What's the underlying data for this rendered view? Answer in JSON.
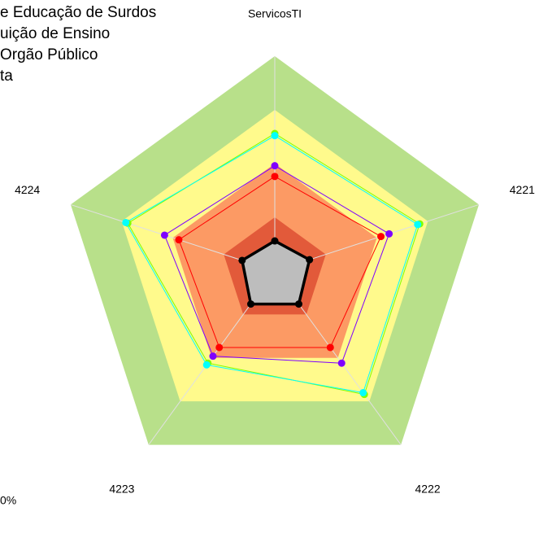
{
  "chart_data": {
    "type": "radar",
    "categories": [
      "ServicosTI",
      "4221",
      "4222",
      "4223",
      "4224"
    ],
    "rlim": [
      0,
      100
    ],
    "zones": [
      {
        "value": 100,
        "color": "#b8e08a"
      },
      {
        "value": 75,
        "color": "#fffa8c"
      },
      {
        "value": 50,
        "color": "#fc9a64"
      },
      {
        "value": 25,
        "color": "#e25a3a"
      }
    ],
    "series": [
      {
        "color": "#7f00ff",
        "values": [
          49,
          56,
          53,
          49,
          54
        ]
      },
      {
        "name": "e Educação de Surdos",
        "color": "#ff0000",
        "values": [
          44,
          52,
          44,
          44,
          47
        ]
      },
      {
        "name": "uição de Ensino",
        "color": "#80ff00",
        "values": [
          64,
          71,
          71,
          53,
          72
        ]
      },
      {
        "name": "Orgão Público",
        "color": "#00ffff",
        "values": [
          63,
          70,
          70,
          54,
          73
        ]
      },
      {
        "name": "ta",
        "color": "#000000",
        "fill": "#bdbdbd",
        "values": [
          14,
          17,
          19,
          19,
          16
        ]
      }
    ],
    "annotations": [
      "0%"
    ]
  }
}
